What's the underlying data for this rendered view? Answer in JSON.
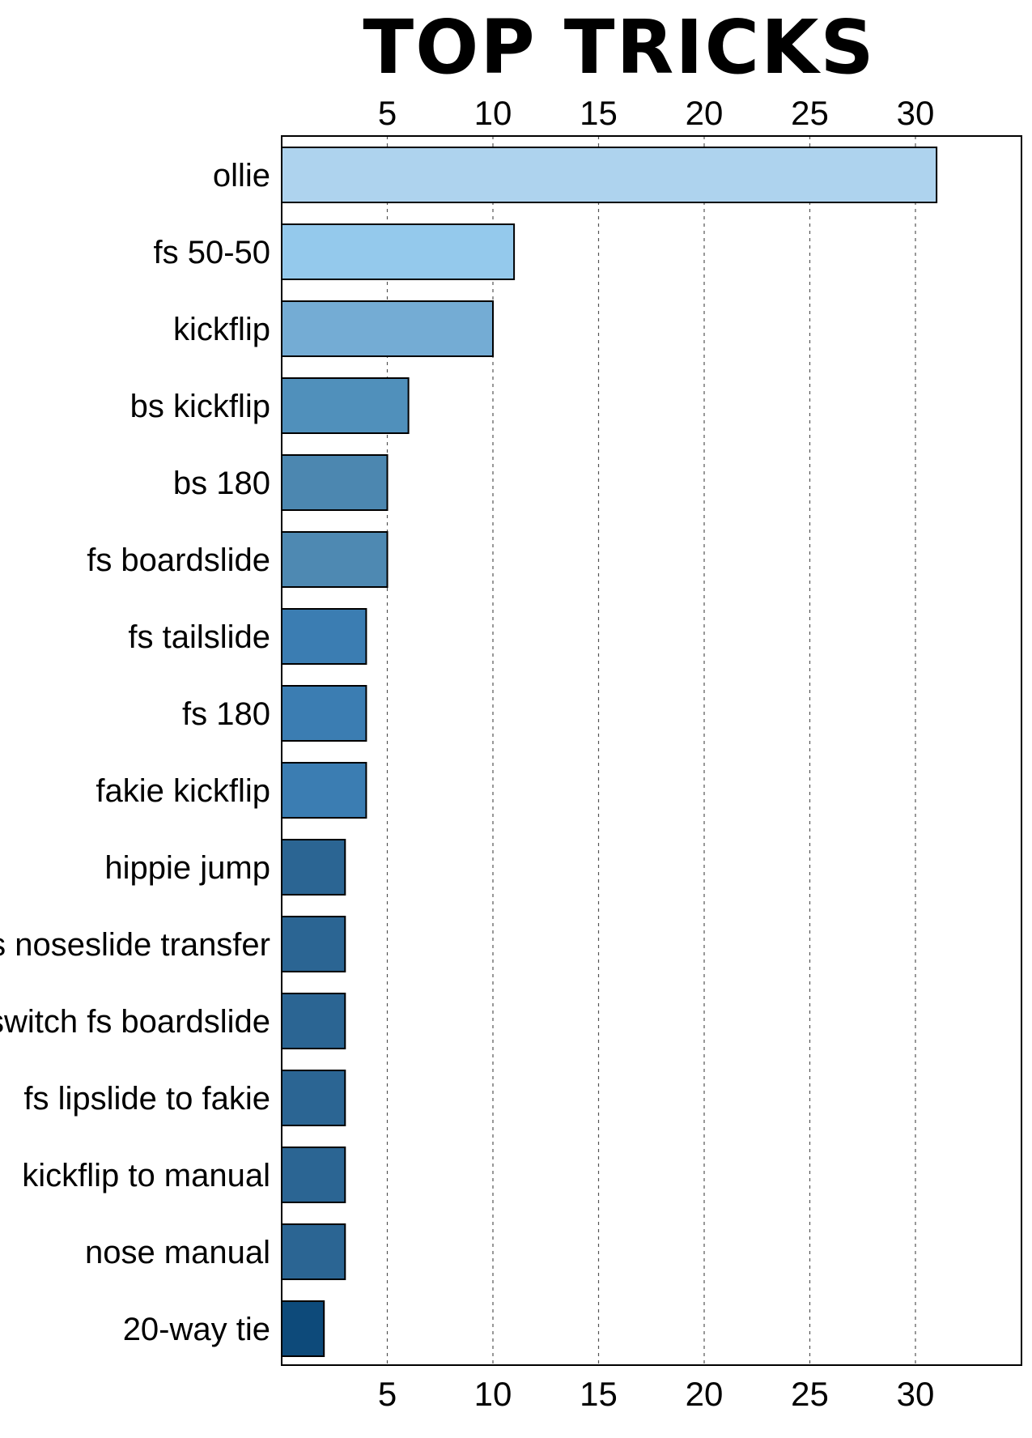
{
  "chart_data": {
    "type": "bar",
    "orientation": "horizontal",
    "title": "TOP TRICKS",
    "xlabel": "",
    "ylabel": "",
    "categories": [
      "ollie",
      "fs 50-50",
      "kickflip",
      "bs kickflip",
      "bs 180",
      "fs boardslide",
      "fs tailslide",
      "fs 180",
      "fakie kickflip",
      "hippie jump",
      "bs noseslide transfer",
      "switch fs boardslide",
      "fs lipslide to fakie",
      "kickflip to manual",
      "nose manual",
      "20-way tie"
    ],
    "values": [
      31,
      11,
      10,
      6,
      5,
      5,
      4,
      4,
      4,
      3,
      3,
      3,
      3,
      3,
      3,
      2
    ],
    "colors": [
      "#aed3ee",
      "#94c9ec",
      "#74acd4",
      "#5090bb",
      "#4c87b0",
      "#4e89b2",
      "#3b7db2",
      "#3b7db2",
      "#3b7db2",
      "#2b6593",
      "#2b6593",
      "#2b6593",
      "#2b6593",
      "#2b6593",
      "#2b6593",
      "#0d4a7a"
    ],
    "xlim": [
      0,
      35
    ],
    "xticks": [
      5,
      10,
      15,
      20,
      25,
      30
    ],
    "xticks_position": "top and bottom",
    "grid": "vertical dashed"
  }
}
